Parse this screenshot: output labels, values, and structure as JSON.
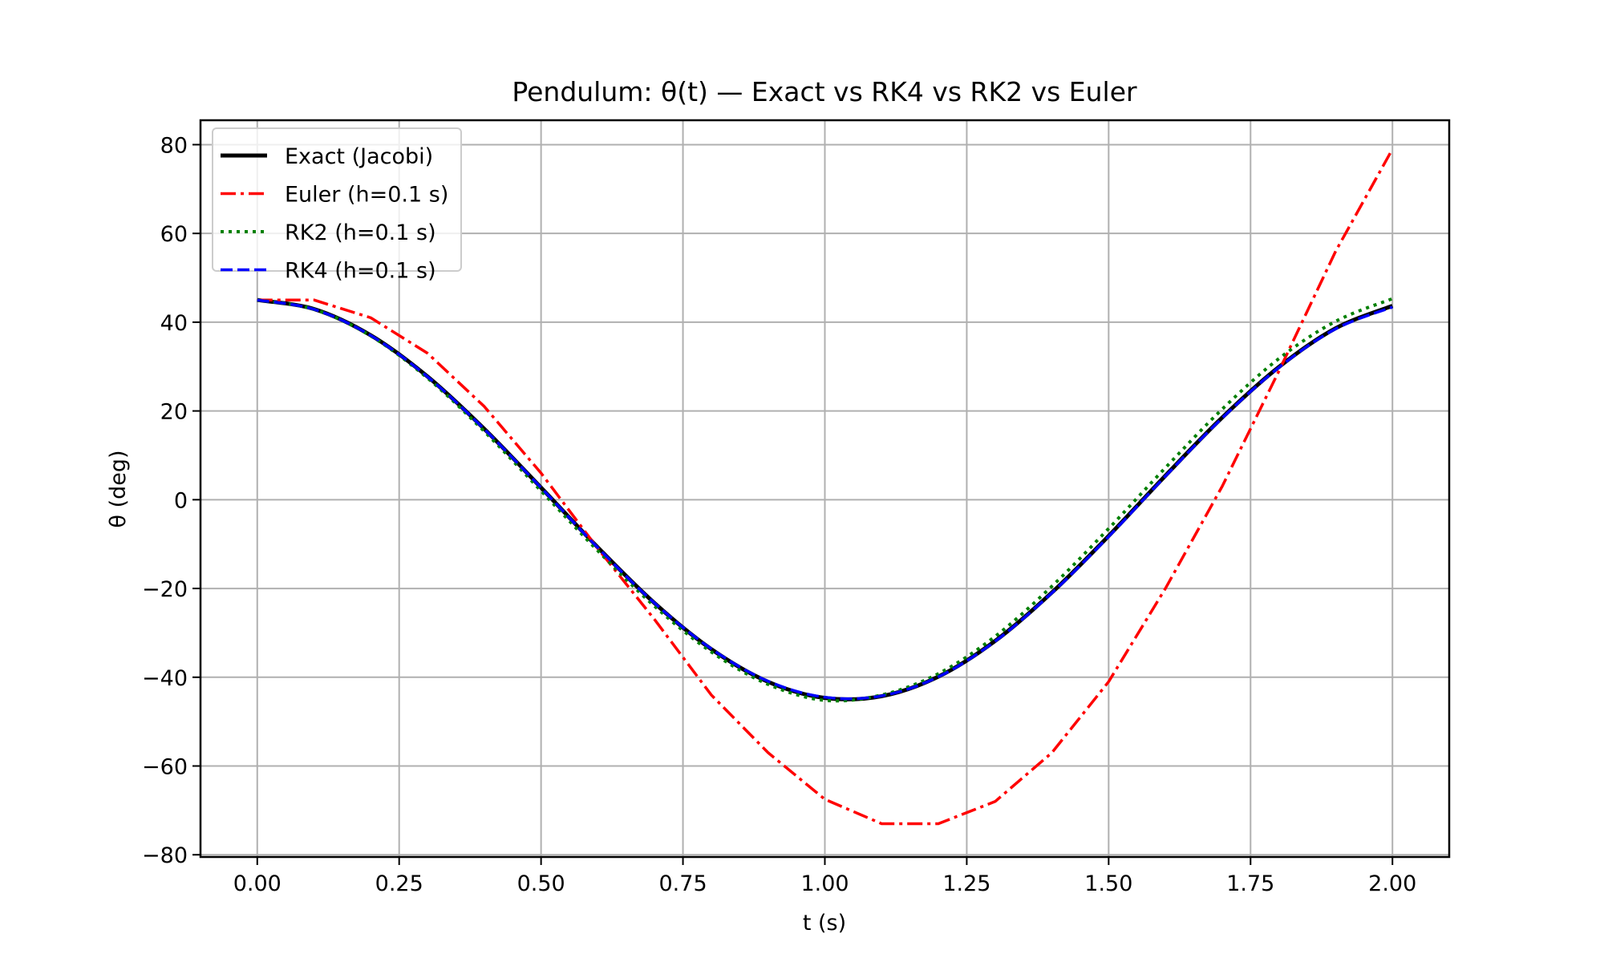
{
  "chart_data": {
    "type": "line",
    "title": "Pendulum: θ(t) — Exact vs RK4 vs RK2 vs Euler",
    "xlabel": "t (s)",
    "ylabel": "θ (deg)",
    "xlim": [
      -0.1,
      2.1
    ],
    "ylim": [
      -80.5,
      85.5
    ],
    "grid": true,
    "legend_placement": "top-left",
    "xticks": [
      0,
      0.25,
      0.5,
      0.75,
      1.0,
      1.25,
      1.5,
      1.75,
      2.0
    ],
    "xtick_labels": [
      "0.00",
      "0.25",
      "0.50",
      "0.75",
      "1.00",
      "1.25",
      "1.50",
      "1.75",
      "2.00"
    ],
    "yticks": [
      -80,
      -60,
      -40,
      -20,
      0,
      20,
      40,
      60,
      80
    ],
    "ytick_labels": [
      "−80",
      "−60",
      "−40",
      "−20",
      "0",
      "20",
      "40",
      "60",
      "80"
    ],
    "x": [
      0,
      0.1,
      0.2,
      0.3,
      0.4,
      0.5,
      0.6,
      0.7,
      0.8,
      0.9,
      1.0,
      1.1,
      1.2,
      1.3,
      1.4,
      1.5,
      1.6,
      1.7,
      1.8,
      1.9,
      2.0
    ],
    "series": [
      {
        "name": "Exact (Jacobi)",
        "color": "#000000",
        "style": "solid",
        "smooth": true,
        "values": [
          45,
          42.96,
          37.04,
          27.75,
          15.95,
          2.72,
          -10.75,
          -23.31,
          -33.68,
          -41.03,
          -44.67,
          -44.27,
          -39.86,
          -31.82,
          -20.91,
          -8.16,
          5.42,
          18.51,
          29.91,
          38.63,
          43.69
        ]
      },
      {
        "name": "Euler (h=0.1 s)",
        "color": "#ff0000",
        "style": "dashdot",
        "smooth": false,
        "values": [
          45,
          45,
          41,
          33,
          21,
          6,
          -11,
          -27,
          -44,
          -57,
          -67.5,
          -73,
          -73,
          -68,
          -57,
          -41,
          -20,
          3,
          29,
          56,
          79
        ]
      },
      {
        "name": "RK2 (h=0.1 s)",
        "color": "#008000",
        "style": "dotted",
        "smooth": true,
        "values": [
          45,
          42.9,
          36.9,
          27.4,
          15.4,
          2.0,
          -11.5,
          -24.0,
          -34.3,
          -41.6,
          -45.2,
          -44.0,
          -39.2,
          -30.8,
          -19.5,
          -6.5,
          7.2,
          20.4,
          31.8,
          40.2,
          45.3
        ]
      },
      {
        "name": "RK4 (h=0.1 s)",
        "color": "#0000ff",
        "style": "dashed",
        "smooth": true,
        "values": [
          45,
          42.9,
          37.0,
          27.7,
          15.9,
          2.7,
          -10.8,
          -23.3,
          -33.6,
          -40.9,
          -44.5,
          -44.2,
          -39.9,
          -31.9,
          -21.0,
          -8.3,
          5.3,
          18.4,
          29.8,
          38.5,
          43.4
        ]
      }
    ]
  }
}
